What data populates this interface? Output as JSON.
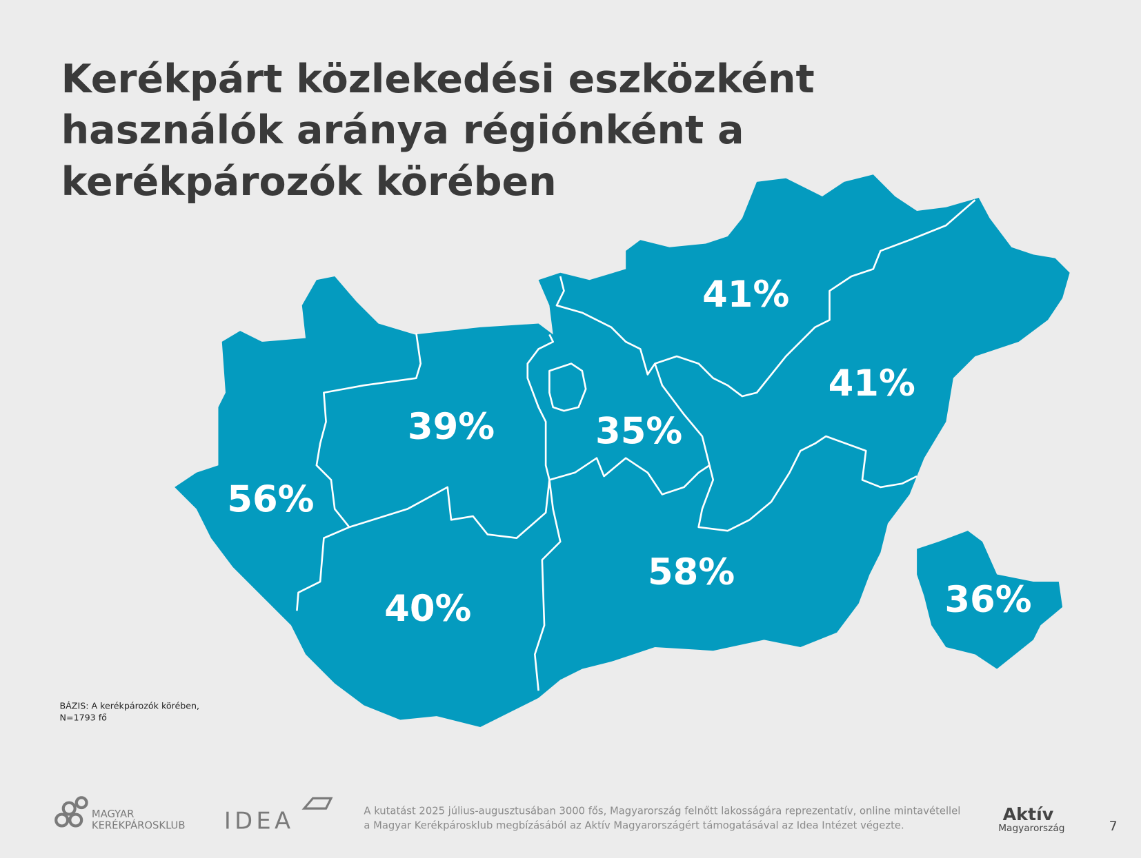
{
  "title": [
    "Kerékpárt közlekedési eszközként",
    "használók aránya régiónként a",
    "kerékpározók körében"
  ],
  "regions": [
    "41%",
    "41%",
    "39%",
    "35%",
    "56%",
    "58%",
    "40%",
    "36%"
  ],
  "base_note": [
    "BÁZIS: A kerékpározók körében,",
    "N=1793 fő"
  ],
  "footer": {
    "logo1": [
      "MAGYAR",
      "KERÉKPÁROSKLUB"
    ],
    "logo2": "IDEA",
    "note": [
      "A kutatást 2025 július-augusztusában 3000 fős, Magyarország felnőtt lakosságára reprezentatív, online mintavétellel",
      "a Magyar Kerékpárosklub megbízásából az Aktív Magyarországért támogatásával az Idea Intézet végezte."
    ],
    "logo3": [
      "Aktív",
      "Magyarország"
    ],
    "page": "7"
  }
}
